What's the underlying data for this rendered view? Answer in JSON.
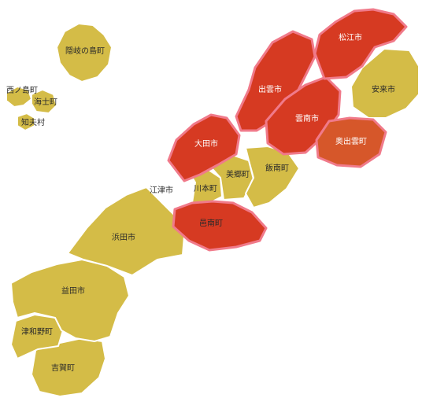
{
  "map": {
    "colors": {
      "base": "#d4bc47",
      "highlight": "#d63a22",
      "highlight_edge": "#f07a8a",
      "border": "#ffffff"
    },
    "regions": [
      {
        "key": "oki",
        "label": "隠岐の島町",
        "level": "base"
      },
      {
        "key": "nishinoshima",
        "label": "西ノ島町",
        "level": "base"
      },
      {
        "key": "ama",
        "label": "海士町",
        "level": "base"
      },
      {
        "key": "chibu",
        "label": "知夫村",
        "level": "base"
      },
      {
        "key": "matsue",
        "label": "松江市",
        "level": "hot"
      },
      {
        "key": "yasugi",
        "label": "安来市",
        "level": "base"
      },
      {
        "key": "izumo",
        "label": "出雲市",
        "level": "hot"
      },
      {
        "key": "unnan",
        "label": "雲南市",
        "level": "hot"
      },
      {
        "key": "okuizumo",
        "label": "奥出雲町",
        "level": "warm"
      },
      {
        "key": "ohda",
        "label": "大田市",
        "level": "hot"
      },
      {
        "key": "iinan",
        "label": "飯南町",
        "level": "base"
      },
      {
        "key": "misato",
        "label": "美郷町",
        "level": "base"
      },
      {
        "key": "kawamoto",
        "label": "川本町",
        "level": "base"
      },
      {
        "key": "gotsu",
        "label": "江津市",
        "level": "base"
      },
      {
        "key": "onan",
        "label": "邑南町",
        "level": "hot"
      },
      {
        "key": "hamada",
        "label": "浜田市",
        "level": "base"
      },
      {
        "key": "masuda",
        "label": "益田市",
        "level": "base"
      },
      {
        "key": "tsuwano",
        "label": "津和野町",
        "level": "base"
      },
      {
        "key": "yoshika",
        "label": "吉賀町",
        "level": "base"
      }
    ]
  }
}
